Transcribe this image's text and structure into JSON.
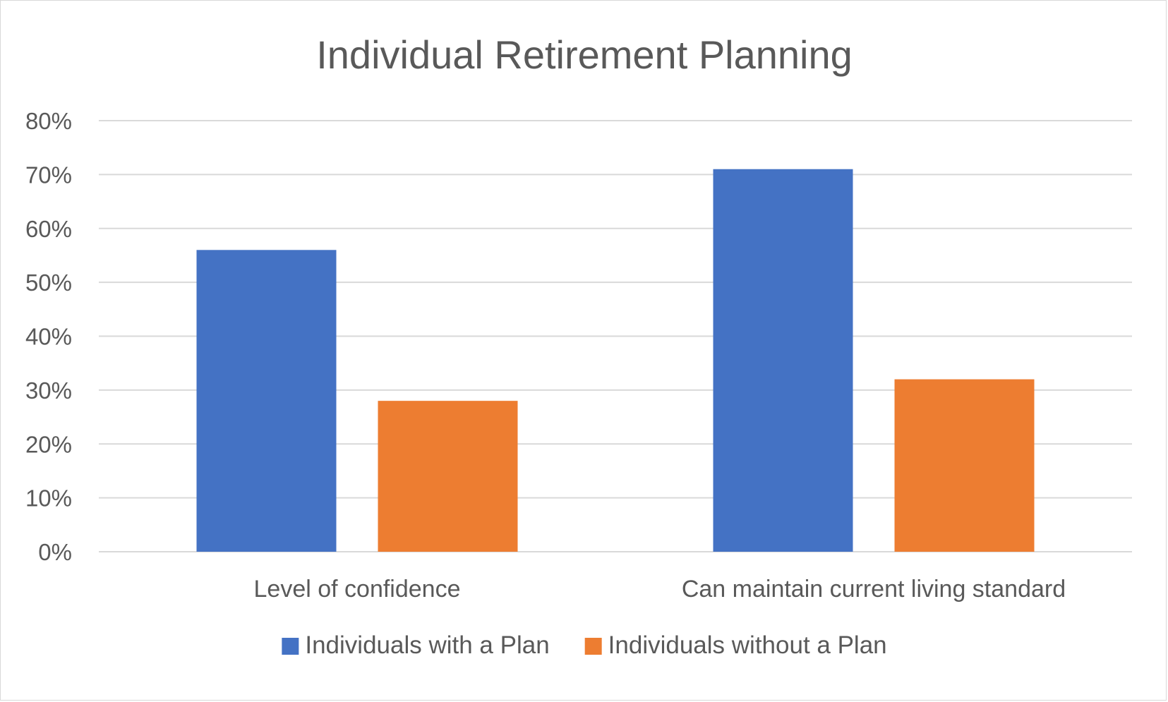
{
  "chart_data": {
    "type": "bar",
    "title": "Individual Retirement Planning",
    "xlabel": "",
    "ylabel": "",
    "categories": [
      "Level of confidence",
      "Can maintain current living standard"
    ],
    "series": [
      {
        "name": "Individuals with a Plan",
        "values": [
          56,
          71
        ],
        "color": "#4472C4"
      },
      {
        "name": "Individuals without a Plan",
        "values": [
          28,
          32
        ],
        "color": "#ED7D31"
      }
    ],
    "ylim": [
      0,
      80
    ],
    "yticks": [
      0,
      10,
      20,
      30,
      40,
      50,
      60,
      70,
      80
    ],
    "ytick_labels": [
      "0%",
      "10%",
      "20%",
      "30%",
      "40%",
      "50%",
      "60%",
      "70%",
      "80%"
    ],
    "grid": true,
    "gridline_color": "#d9d9d9",
    "legend_position": "bottom"
  }
}
